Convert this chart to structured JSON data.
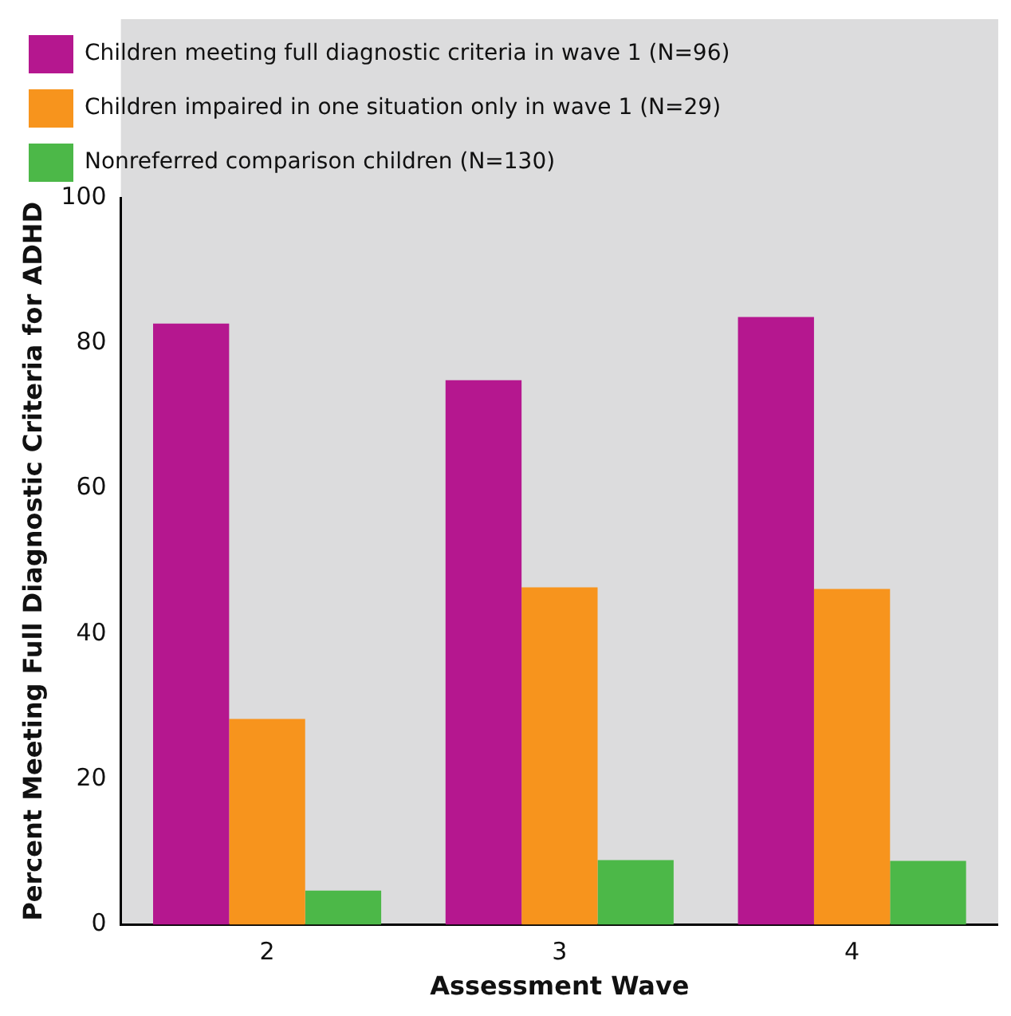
{
  "chart_data": {
    "type": "bar",
    "xlabel": "Assessment Wave",
    "ylabel": "Percent Meeting Full Diagnostic Criteria for ADHD",
    "categories": [
      "2",
      "3",
      "4"
    ],
    "series": [
      {
        "name": "Children meeting full diagnostic criteria in wave 1 (N=96)",
        "color": "#b5178f",
        "values": [
          82.7,
          74.9,
          83.6
        ]
      },
      {
        "name": "Children impaired in one situation only in wave 1 (N=29)",
        "color": "#f7941d",
        "values": [
          28.3,
          46.4,
          46.2
        ]
      },
      {
        "name": "Nonreferred comparison children (N=130)",
        "color": "#4cb848",
        "values": [
          4.7,
          8.9,
          8.8
        ]
      }
    ],
    "ylim": [
      0,
      100
    ],
    "yticks": [
      0,
      20,
      40,
      60,
      80,
      100
    ],
    "grid": false,
    "legend": "top left"
  }
}
